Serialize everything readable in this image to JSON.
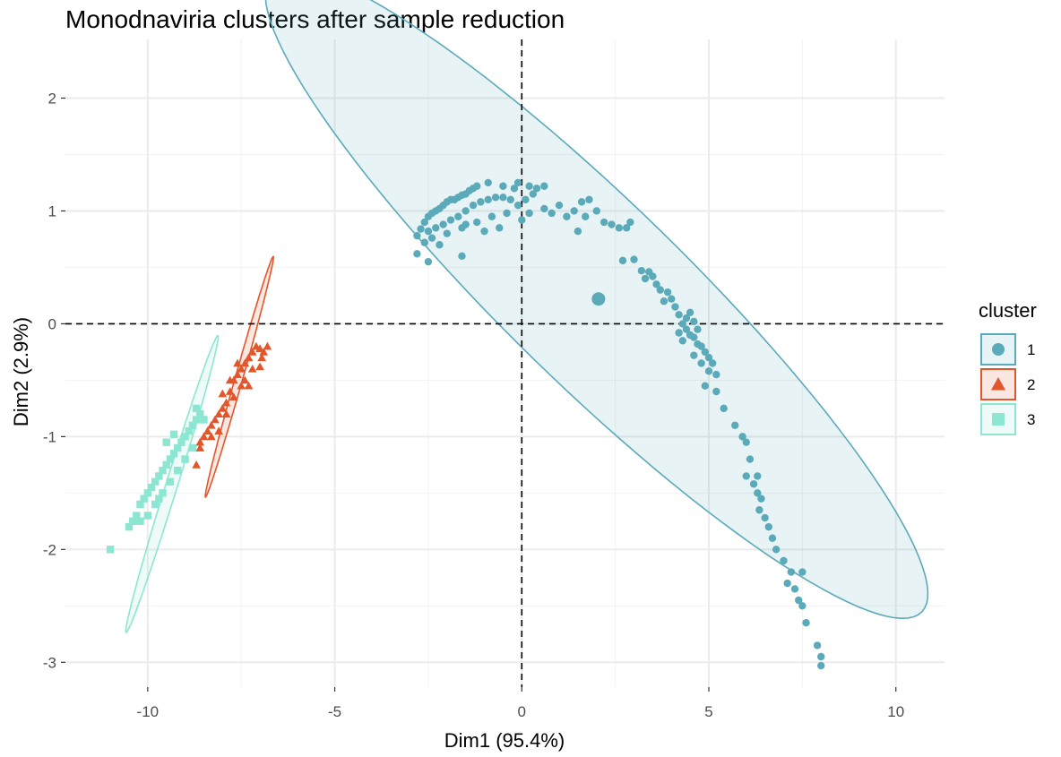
{
  "chart_data": {
    "type": "scatter",
    "title": "Monodnaviria clusters after sample reduction",
    "xlabel": "Dim1 (95.4%)",
    "ylabel": "Dim2 (2.9%)",
    "xlim": [
      -12.2,
      11.3
    ],
    "ylim": [
      -3.22,
      2.52
    ],
    "xticks": [
      -10,
      -5,
      0,
      5,
      10
    ],
    "xtick_labels": [
      "-10",
      "-5",
      "0",
      "5",
      "10"
    ],
    "yticks": [
      -3,
      -2,
      -1,
      0,
      1,
      2
    ],
    "ytick_labels": [
      "-3",
      "-2",
      "-1",
      "0",
      "1",
      "2"
    ],
    "grid": true,
    "reference_lines": {
      "x": 0,
      "y": 0,
      "style": "dashed"
    },
    "legend": {
      "title": "cluster",
      "position": "right"
    },
    "series": [
      {
        "name": "1",
        "color": "#5BAAB9",
        "marker": "circle",
        "centroid": [
          2.05,
          0.22
        ],
        "ellipse": {
          "center": [
            2.0,
            0.26
          ],
          "semi_major": 9.25,
          "semi_minor": 1.05,
          "angle_deg": -16.9
        },
        "points": [
          [
            -2.8,
            0.78
          ],
          [
            -2.7,
            0.84
          ],
          [
            -2.6,
            0.9
          ],
          [
            -2.5,
            0.95
          ],
          [
            -2.4,
            0.98
          ],
          [
            -2.3,
            1.0
          ],
          [
            -2.2,
            1.02
          ],
          [
            -2.1,
            1.05
          ],
          [
            -2.0,
            1.08
          ],
          [
            -1.9,
            1.1
          ],
          [
            -1.8,
            1.1
          ],
          [
            -1.7,
            1.12
          ],
          [
            -1.6,
            1.14
          ],
          [
            -1.5,
            1.15
          ],
          [
            -1.4,
            1.18
          ],
          [
            -1.3,
            1.2
          ],
          [
            -1.2,
            1.22
          ],
          [
            -2.5,
            0.82
          ],
          [
            -2.3,
            0.85
          ],
          [
            -2.1,
            0.88
          ],
          [
            -1.9,
            0.92
          ],
          [
            -1.7,
            0.95
          ],
          [
            -1.5,
            1.0
          ],
          [
            -1.3,
            1.05
          ],
          [
            -1.1,
            1.08
          ],
          [
            -0.9,
            1.1
          ],
          [
            -0.7,
            1.12
          ],
          [
            -0.5,
            1.12
          ],
          [
            -0.3,
            1.1
          ],
          [
            -0.1,
            1.05
          ],
          [
            0.1,
            1.1
          ],
          [
            0.3,
            1.15
          ],
          [
            -2.6,
            0.72
          ],
          [
            -2.4,
            0.76
          ],
          [
            -2.0,
            0.8
          ],
          [
            -1.6,
            0.85
          ],
          [
            -1.2,
            0.9
          ],
          [
            -0.8,
            0.95
          ],
          [
            -0.4,
            0.98
          ],
          [
            0.0,
            0.92
          ],
          [
            -1.5,
            0.88
          ],
          [
            -1.0,
            0.82
          ],
          [
            -0.6,
            0.85
          ],
          [
            -0.9,
            1.25
          ],
          [
            -0.5,
            1.22
          ],
          [
            -0.2,
            1.2
          ],
          [
            -0.1,
            1.25
          ],
          [
            0.2,
            1.22
          ],
          [
            0.4,
            1.2
          ],
          [
            0.6,
            1.02
          ],
          [
            0.8,
            0.98
          ],
          [
            1.0,
            1.05
          ],
          [
            1.2,
            0.95
          ],
          [
            1.4,
            1.0
          ],
          [
            1.6,
            1.08
          ],
          [
            1.8,
            1.1
          ],
          [
            2.0,
            1.0
          ],
          [
            2.2,
            0.9
          ],
          [
            2.4,
            0.88
          ],
          [
            2.6,
            0.85
          ],
          [
            1.5,
            0.82
          ],
          [
            1.7,
            0.95
          ],
          [
            0.6,
            1.22
          ],
          [
            0.2,
            0.98
          ],
          [
            -2.8,
            0.62
          ],
          [
            -2.5,
            0.55
          ],
          [
            -1.6,
            0.6
          ],
          [
            -2.2,
            0.7
          ],
          [
            2.8,
            0.85
          ],
          [
            2.9,
            0.9
          ],
          [
            2.7,
            0.56
          ],
          [
            3.0,
            0.57
          ],
          [
            3.2,
            0.47
          ],
          [
            3.4,
            0.46
          ],
          [
            3.5,
            0.42
          ],
          [
            3.3,
            0.4
          ],
          [
            3.6,
            0.35
          ],
          [
            3.7,
            0.3
          ],
          [
            3.8,
            0.2
          ],
          [
            3.9,
            0.28
          ],
          [
            4.0,
            0.22
          ],
          [
            4.1,
            0.15
          ],
          [
            4.2,
            0.08
          ],
          [
            4.3,
            0.0
          ],
          [
            4.4,
            -0.05
          ],
          [
            4.5,
            -0.1
          ],
          [
            4.6,
            -0.12
          ],
          [
            4.7,
            -0.18
          ],
          [
            4.8,
            -0.2
          ],
          [
            4.9,
            -0.25
          ],
          [
            5.0,
            -0.3
          ],
          [
            5.1,
            -0.35
          ],
          [
            4.2,
            -0.08
          ],
          [
            4.4,
            0.05
          ],
          [
            4.5,
            0.1
          ],
          [
            4.6,
            0.02
          ],
          [
            4.7,
            -0.05
          ],
          [
            4.3,
            -0.15
          ],
          [
            4.6,
            -0.28
          ],
          [
            4.8,
            -0.35
          ],
          [
            5.0,
            -0.42
          ],
          [
            5.2,
            -0.45
          ],
          [
            4.9,
            -0.55
          ],
          [
            5.2,
            -0.6
          ],
          [
            5.4,
            -0.75
          ],
          [
            5.7,
            -0.9
          ],
          [
            5.9,
            -1.0
          ],
          [
            6.0,
            -1.05
          ],
          [
            6.1,
            -1.2
          ],
          [
            6.0,
            -1.35
          ],
          [
            6.2,
            -1.42
          ],
          [
            6.3,
            -1.5
          ],
          [
            6.4,
            -1.55
          ],
          [
            6.35,
            -1.65
          ],
          [
            6.5,
            -1.72
          ],
          [
            6.3,
            -1.35
          ],
          [
            6.6,
            -1.8
          ],
          [
            6.7,
            -1.9
          ],
          [
            6.8,
            -2.0
          ],
          [
            7.0,
            -2.1
          ],
          [
            7.2,
            -2.2
          ],
          [
            7.1,
            -2.3
          ],
          [
            7.3,
            -2.35
          ],
          [
            7.5,
            -2.2
          ],
          [
            7.4,
            -2.45
          ],
          [
            7.5,
            -2.5
          ],
          [
            7.6,
            -2.65
          ],
          [
            7.9,
            -2.85
          ],
          [
            8.0,
            -2.95
          ],
          [
            8.0,
            -3.03
          ]
        ]
      },
      {
        "name": "2",
        "color": "#E1562B",
        "marker": "triangle",
        "ellipse": {
          "center": [
            -7.55,
            -0.47
          ],
          "semi_major": 1.4,
          "semi_minor": 0.08,
          "angle_deg": 49.5
        },
        "points": [
          [
            -8.7,
            -1.25
          ],
          [
            -8.6,
            -1.1
          ],
          [
            -8.5,
            -1.0
          ],
          [
            -8.4,
            -0.95
          ],
          [
            -8.3,
            -0.9
          ],
          [
            -8.2,
            -0.85
          ],
          [
            -8.1,
            -0.8
          ],
          [
            -8.0,
            -0.75
          ],
          [
            -7.9,
            -0.7
          ],
          [
            -7.8,
            -0.6
          ],
          [
            -7.7,
            -0.5
          ],
          [
            -7.6,
            -0.45
          ],
          [
            -7.5,
            -0.4
          ],
          [
            -7.4,
            -0.35
          ],
          [
            -7.3,
            -0.3
          ],
          [
            -7.2,
            -0.25
          ],
          [
            -7.1,
            -0.2
          ],
          [
            -7.0,
            -0.22
          ],
          [
            -6.9,
            -0.25
          ],
          [
            -6.8,
            -0.2
          ],
          [
            -7.5,
            -0.55
          ],
          [
            -7.7,
            -0.65
          ],
          [
            -7.9,
            -0.8
          ],
          [
            -8.1,
            -0.95
          ],
          [
            -8.3,
            -1.0
          ],
          [
            -8.6,
            -1.05
          ],
          [
            -7.4,
            -0.5
          ],
          [
            -7.2,
            -0.4
          ],
          [
            -6.95,
            -0.3
          ],
          [
            -7.6,
            -0.35
          ],
          [
            -7.8,
            -0.5
          ],
          [
            -8.0,
            -0.62
          ],
          [
            -7.3,
            -0.55
          ],
          [
            -7.0,
            -0.38
          ]
        ]
      },
      {
        "name": "3",
        "color": "#8CE6D2",
        "marker": "square",
        "ellipse": {
          "center": [
            -9.35,
            -1.42
          ],
          "semi_major": 1.8,
          "semi_minor": 0.12,
          "angle_deg": 46.8
        },
        "points": [
          [
            -11.0,
            -2.0
          ],
          [
            -10.5,
            -1.8
          ],
          [
            -10.4,
            -1.75
          ],
          [
            -10.3,
            -1.7
          ],
          [
            -10.2,
            -1.6
          ],
          [
            -10.1,
            -1.55
          ],
          [
            -10.0,
            -1.5
          ],
          [
            -9.9,
            -1.45
          ],
          [
            -9.8,
            -1.4
          ],
          [
            -9.7,
            -1.35
          ],
          [
            -9.6,
            -1.3
          ],
          [
            -9.5,
            -1.25
          ],
          [
            -9.4,
            -1.2
          ],
          [
            -9.3,
            -1.15
          ],
          [
            -9.2,
            -1.1
          ],
          [
            -9.1,
            -1.05
          ],
          [
            -9.0,
            -1.0
          ],
          [
            -8.9,
            -0.95
          ],
          [
            -8.8,
            -0.9
          ],
          [
            -8.7,
            -0.85
          ],
          [
            -8.6,
            -0.8
          ],
          [
            -9.6,
            -1.5
          ],
          [
            -9.4,
            -1.4
          ],
          [
            -9.2,
            -1.3
          ],
          [
            -9.8,
            -1.6
          ],
          [
            -10.0,
            -1.7
          ],
          [
            -9.0,
            -1.2
          ],
          [
            -8.8,
            -1.1
          ],
          [
            -9.5,
            -1.05
          ],
          [
            -9.3,
            -0.98
          ],
          [
            -10.2,
            -1.75
          ],
          [
            -9.7,
            -1.55
          ],
          [
            -8.5,
            -0.85
          ],
          [
            -8.7,
            -0.75
          ]
        ]
      }
    ]
  }
}
